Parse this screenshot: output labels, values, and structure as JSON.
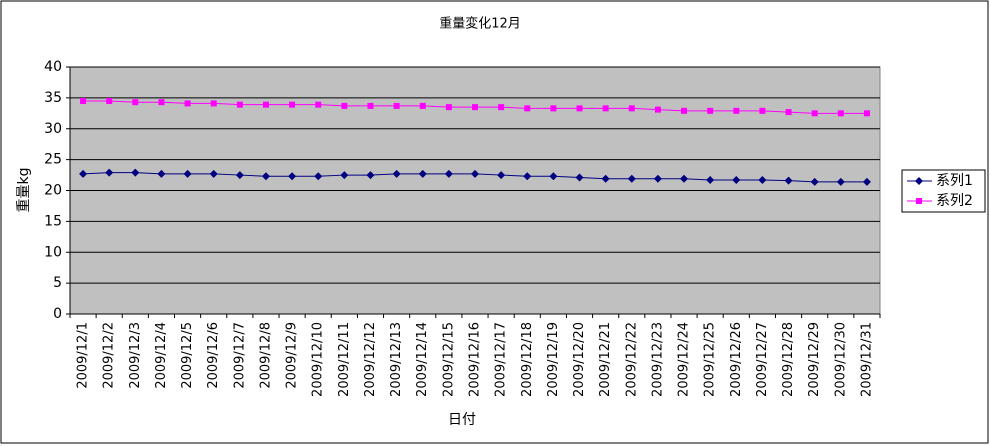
{
  "chart_data": {
    "type": "line",
    "title": "重量変化12月",
    "x_label": "日付",
    "y_label": "重量kg",
    "categories": [
      "2009/12/1",
      "2009/12/2",
      "2009/12/3",
      "2009/12/4",
      "2009/12/5",
      "2009/12/6",
      "2009/12/7",
      "2009/12/8",
      "2009/12/9",
      "2009/12/10",
      "2009/12/11",
      "2009/12/12",
      "2009/12/13",
      "2009/12/14",
      "2009/12/15",
      "2009/12/16",
      "2009/12/17",
      "2009/12/18",
      "2009/12/19",
      "2009/12/20",
      "2009/12/21",
      "2009/12/22",
      "2009/12/23",
      "2009/12/24",
      "2009/12/25",
      "2009/12/26",
      "2009/12/27",
      "2009/12/28",
      "2009/12/29",
      "2009/12/30",
      "2009/12/31"
    ],
    "series": [
      {
        "name": "系列1",
        "color": "#000080",
        "marker": "diamond",
        "values": [
          22.7,
          22.9,
          22.9,
          22.7,
          22.7,
          22.7,
          22.5,
          22.3,
          22.3,
          22.3,
          22.5,
          22.5,
          22.7,
          22.7,
          22.7,
          22.7,
          22.5,
          22.3,
          22.3,
          22.1,
          21.9,
          21.9,
          21.9,
          21.9,
          21.7,
          21.7,
          21.7,
          21.6,
          21.4,
          21.4,
          21.4
        ]
      },
      {
        "name": "系列2",
        "color": "#ff00ff",
        "marker": "square",
        "values": [
          34.5,
          34.5,
          34.3,
          34.3,
          34.1,
          34.1,
          33.9,
          33.9,
          33.9,
          33.9,
          33.7,
          33.7,
          33.7,
          33.7,
          33.5,
          33.5,
          33.5,
          33.3,
          33.3,
          33.3,
          33.3,
          33.3,
          33.1,
          32.9,
          32.9,
          32.9,
          32.9,
          32.7,
          32.5,
          32.5,
          32.5
        ]
      }
    ],
    "ylim": [
      0,
      40
    ],
    "yticks": [
      0,
      5,
      10,
      15,
      20,
      25,
      30,
      35,
      40
    ],
    "grid": true,
    "plot_background": "#c0c0c0",
    "legend": "right"
  }
}
